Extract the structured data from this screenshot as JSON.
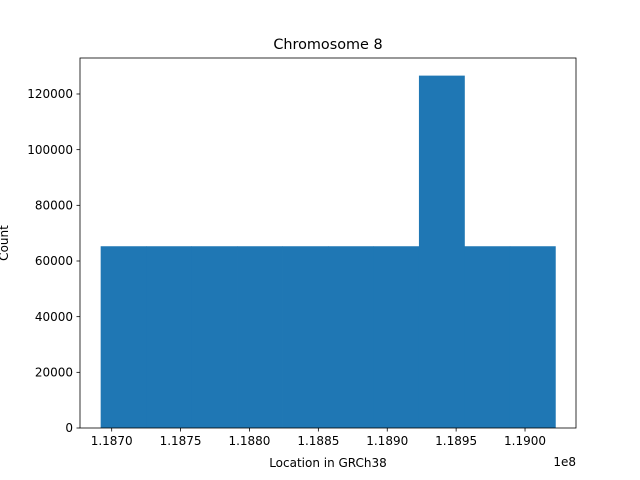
{
  "chart_data": {
    "type": "bar",
    "title": "Chromosome 8",
    "xlabel": "Location in GRCh38",
    "ylabel": "Count",
    "x_offset_label": "1e8",
    "x_unit_scale": 100000000,
    "bin_edges": [
      1.18692,
      1.18725,
      1.18758,
      1.18791,
      1.18824,
      1.18857,
      1.1889,
      1.18923,
      1.18956,
      1.18989,
      1.19022
    ],
    "values": [
      65300,
      65300,
      65300,
      65300,
      65300,
      65300,
      65300,
      126600,
      65300,
      65300
    ],
    "xlim": [
      1.18677,
      1.19037
    ],
    "ylim": [
      0,
      132930
    ],
    "xticks": [
      1.187,
      1.1875,
      1.188,
      1.1885,
      1.189,
      1.1895,
      1.19
    ],
    "xtick_labels": [
      "1.1870",
      "1.1875",
      "1.1880",
      "1.1885",
      "1.1890",
      "1.1895",
      "1.1900"
    ],
    "yticks": [
      0,
      20000,
      40000,
      60000,
      80000,
      100000,
      120000
    ],
    "ytick_labels": [
      "0",
      "20000",
      "40000",
      "60000",
      "80000",
      "100000",
      "120000"
    ],
    "color": "#1f77b4",
    "grid": false,
    "legend": "none"
  }
}
